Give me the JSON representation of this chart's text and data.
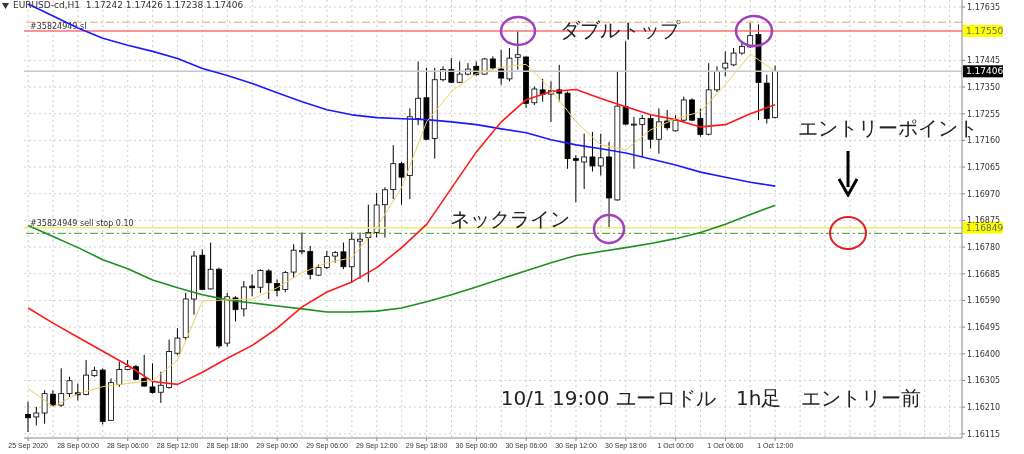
{
  "chart_data": {
    "type": "candlestick",
    "title": "EURUSD-cd,H1  1.17242 1.17426 1.17238 1.17406",
    "categories": [
      "25 Sep 2020",
      null,
      null,
      null,
      null,
      null,
      "28 Sep 00:00",
      null,
      null,
      null,
      null,
      null,
      "28 Sep 06:00",
      null,
      null,
      null,
      null,
      null,
      "28 Sep 12:00",
      null,
      null,
      null,
      null,
      null,
      "28 Sep 18:00",
      null,
      null,
      null,
      null,
      null,
      "29 Sep 00:00",
      null,
      null,
      null,
      null,
      null,
      "29 Sep 06:00",
      null,
      null,
      null,
      null,
      null,
      "29 Sep 12:00",
      null,
      null,
      null,
      null,
      null,
      "29 Sep 18:00",
      null,
      null,
      null,
      null,
      null,
      "30 Sep 00:00",
      null,
      null,
      null,
      null,
      null,
      "30 Sep 06:00",
      null,
      null,
      null,
      null,
      null,
      "30 Sep 12:00",
      null,
      null,
      null,
      null,
      null,
      "30 Sep 18:00",
      null,
      null,
      null,
      null,
      null,
      "1 Oct 00:00",
      null,
      null,
      null,
      null,
      null,
      "1 Oct 06:00",
      null,
      null,
      null,
      null,
      null,
      "1 Oct 12:00",
      null,
      null,
      null,
      null,
      null,
      null,
      null,
      null,
      null,
      null,
      null,
      null,
      null,
      null,
      null,
      null,
      null,
      null,
      null,
      null,
      null,
      null
    ],
    "ohlc": [
      [
        1.16184,
        1.16229,
        1.16121,
        1.16172
      ],
      [
        1.16175,
        1.16211,
        1.16145,
        1.16189
      ],
      [
        1.16189,
        1.1627,
        1.16151,
        1.16258
      ],
      [
        1.16256,
        1.1627,
        1.16211,
        1.16217
      ],
      [
        1.16217,
        1.16348,
        1.16211,
        1.16258
      ],
      [
        1.16258,
        1.16318,
        1.16246,
        1.16304
      ],
      [
        1.16261,
        1.16294,
        1.16234,
        1.16254
      ],
      [
        1.16255,
        1.16378,
        1.16252,
        1.16324
      ],
      [
        1.16322,
        1.16354,
        1.16318,
        1.1634
      ],
      [
        1.16342,
        1.16348,
        1.16148,
        1.16159
      ],
      [
        1.16163,
        1.16312,
        1.16163,
        1.16297
      ],
      [
        1.16291,
        1.16372,
        1.16282,
        1.16344
      ],
      [
        1.16344,
        1.16378,
        1.16342,
        1.16354
      ],
      [
        1.16354,
        1.1636,
        1.16306,
        1.16309
      ],
      [
        1.16312,
        1.16396,
        1.16282,
        1.16285
      ],
      [
        1.16282,
        1.16366,
        1.16258,
        1.16262
      ],
      [
        1.16263,
        1.16336,
        1.16225,
        1.16288
      ],
      [
        1.1628,
        1.1645,
        1.16276,
        1.16408
      ],
      [
        1.16402,
        1.16491,
        1.16396,
        1.16456
      ],
      [
        1.16458,
        1.16617,
        1.1645,
        1.16595
      ],
      [
        1.16595,
        1.16766,
        1.16539,
        1.16748
      ],
      [
        1.16751,
        1.16772,
        1.16629,
        1.16629
      ],
      [
        1.16631,
        1.16796,
        1.16629,
        1.16701
      ],
      [
        1.16701,
        1.16707,
        1.1642,
        1.16428
      ],
      [
        1.16438,
        1.16617,
        1.16426,
        1.16603
      ],
      [
        1.16599,
        1.16605,
        1.16515,
        1.16557
      ],
      [
        1.1656,
        1.16659,
        1.16533,
        1.16638
      ],
      [
        1.16641,
        1.16683,
        1.16605,
        1.16635
      ],
      [
        1.16637,
        1.16701,
        1.16617,
        1.16697
      ],
      [
        1.16695,
        1.16701,
        1.16595,
        1.16653
      ],
      [
        1.1665,
        1.16665,
        1.16605,
        1.16626
      ],
      [
        1.16629,
        1.16695,
        1.16619,
        1.16689
      ],
      [
        1.16691,
        1.1679,
        1.16671,
        1.16769
      ],
      [
        1.16765,
        1.16832,
        1.16754,
        1.16767
      ],
      [
        1.16764,
        1.16784,
        1.16665,
        1.16683
      ],
      [
        1.1668,
        1.16718,
        1.16677,
        1.16707
      ],
      [
        1.16707,
        1.16766,
        1.16701,
        1.16746
      ],
      [
        1.16748,
        1.16766,
        1.16724,
        1.1676
      ],
      [
        1.16763,
        1.16796,
        1.16701,
        1.1671
      ],
      [
        1.1671,
        1.16832,
        1.16653,
        1.16808
      ],
      [
        1.16801,
        1.16832,
        1.16667,
        1.16808
      ],
      [
        1.16814,
        1.16931,
        1.16655,
        1.16832
      ],
      [
        1.16832,
        1.16973,
        1.16814,
        1.1693
      ],
      [
        1.16931,
        1.16993,
        1.16814,
        1.16984
      ],
      [
        1.16985,
        1.17143,
        1.16951,
        1.17077
      ],
      [
        1.17077,
        1.17083,
        1.16931,
        1.17029
      ],
      [
        1.17035,
        1.17274,
        1.16951,
        1.17244
      ],
      [
        1.17238,
        1.17441,
        1.17214,
        1.1731
      ],
      [
        1.17312,
        1.17418,
        1.17161,
        1.17164
      ],
      [
        1.17167,
        1.17418,
        1.17095,
        1.17376
      ],
      [
        1.17376,
        1.17424,
        1.1737,
        1.17412
      ],
      [
        1.17412,
        1.17453,
        1.17364,
        1.17367
      ],
      [
        1.17367,
        1.17441,
        1.17364,
        1.17396
      ],
      [
        1.17396,
        1.17435,
        1.17391,
        1.17414
      ],
      [
        1.17424,
        1.17441,
        1.17391,
        1.17394
      ],
      [
        1.17396,
        1.17453,
        1.17394,
        1.1745
      ],
      [
        1.1745,
        1.17459,
        1.17412,
        1.17418
      ],
      [
        1.17414,
        1.17483,
        1.17358,
        1.17382
      ],
      [
        1.17379,
        1.17489,
        1.1737,
        1.17453
      ],
      [
        1.17456,
        1.17549,
        1.17412,
        1.17465
      ],
      [
        1.17457,
        1.17459,
        1.17276,
        1.17292
      ],
      [
        1.17294,
        1.17352,
        1.17286,
        1.17343
      ],
      [
        1.1734,
        1.17379,
        1.17298,
        1.17324
      ],
      [
        1.17325,
        1.1737,
        1.17226,
        1.17337
      ],
      [
        1.1734,
        1.17429,
        1.17298,
        1.17328
      ],
      [
        1.17328,
        1.17334,
        1.17059,
        1.17095
      ],
      [
        1.17095,
        1.17107,
        1.16939,
        1.17089
      ],
      [
        1.17083,
        1.17184,
        1.16987,
        1.17101
      ],
      [
        1.17101,
        1.1719,
        1.17049,
        1.17069
      ],
      [
        1.17069,
        1.17184,
        1.17035,
        1.17098
      ],
      [
        1.17101,
        1.17155,
        1.16846,
        1.16955
      ],
      [
        1.16948,
        1.17406,
        1.16945,
        1.17282
      ],
      [
        1.1728,
        1.17513,
        1.17214,
        1.17218
      ],
      [
        1.17216,
        1.17244,
        1.17059,
        1.17218
      ],
      [
        1.17217,
        1.1725,
        1.17101,
        1.17238
      ],
      [
        1.17238,
        1.1725,
        1.17131,
        1.17164
      ],
      [
        1.17164,
        1.17274,
        1.17113,
        1.17226
      ],
      [
        1.17229,
        1.17268,
        1.17196,
        1.17205
      ],
      [
        1.17194,
        1.1725,
        1.17191,
        1.17232
      ],
      [
        1.17232,
        1.17316,
        1.17226,
        1.17304
      ],
      [
        1.17304,
        1.1731,
        1.17229,
        1.17232
      ],
      [
        1.17238,
        1.17274,
        1.17173,
        1.17181
      ],
      [
        1.17182,
        1.17435,
        1.17178,
        1.1734
      ],
      [
        1.1734,
        1.17424,
        1.17332,
        1.17406
      ],
      [
        1.17418,
        1.17477,
        1.17388,
        1.17435
      ],
      [
        1.17429,
        1.17489,
        1.17424,
        1.17471
      ],
      [
        1.17471,
        1.17513,
        1.17465,
        1.17495
      ],
      [
        1.17493,
        1.17579,
        1.17489,
        1.17533
      ],
      [
        1.17537,
        1.17573,
        1.17232,
        1.17366
      ],
      [
        1.17364,
        1.17394,
        1.1722,
        1.17238
      ],
      [
        1.17242,
        1.17426,
        1.17238,
        1.17406
      ],
      null,
      null,
      null,
      null,
      null,
      null,
      null,
      null,
      null,
      null,
      null,
      null,
      null,
      null,
      null,
      null,
      null,
      null,
      null,
      null,
      null,
      null
    ],
    "series": [
      {
        "type": "line",
        "color": "#1a1aff",
        "values": [
          1.17646,
          null,
          null,
          1.17603,
          null,
          null,
          1.1756,
          null,
          null,
          1.17524,
          null,
          null,
          1.17499,
          null,
          null,
          1.17477,
          null,
          null,
          1.17452,
          null,
          null,
          1.17416,
          null,
          null,
          1.17391,
          null,
          null,
          1.17363,
          null,
          null,
          1.1733,
          null,
          null,
          1.17298,
          null,
          null,
          1.17269,
          null,
          null,
          1.17251,
          null,
          null,
          1.17241,
          null,
          null,
          1.17237,
          null,
          null,
          1.17234,
          null,
          null,
          1.17226,
          null,
          null,
          1.17216,
          null,
          null,
          1.17201,
          null,
          null,
          1.17187,
          null,
          null,
          1.17162,
          null,
          null,
          1.17144,
          null,
          null,
          1.1713,
          null,
          null,
          1.17115,
          null,
          null,
          1.17094,
          null,
          null,
          1.17072,
          null,
          null,
          1.17047,
          null,
          null,
          1.17029,
          null,
          null,
          1.17011,
          null,
          null,
          1.16997,
          null,
          null,
          null,
          null,
          null,
          null,
          null,
          null,
          null,
          null,
          null,
          null,
          null,
          null,
          null,
          null,
          null,
          null,
          null,
          null,
          null,
          null
        ]
      },
      {
        "type": "line",
        "color": "#1f8f1f",
        "values": [
          1.16857,
          null,
          null,
          1.16818,
          null,
          null,
          1.16778,
          null,
          null,
          1.16735,
          null,
          null,
          1.16703,
          null,
          null,
          1.16663,
          null,
          null,
          1.16635,
          null,
          null,
          1.1661,
          null,
          null,
          1.16592,
          null,
          null,
          1.16581,
          null,
          null,
          1.1657,
          null,
          null,
          1.1656,
          null,
          null,
          1.16549,
          null,
          null,
          1.16549,
          null,
          null,
          1.16552,
          null,
          null,
          1.16563,
          null,
          null,
          1.16585,
          null,
          null,
          1.1661,
          null,
          null,
          1.16638,
          null,
          null,
          1.16667,
          null,
          null,
          1.16696,
          null,
          null,
          1.16724,
          null,
          null,
          1.1675,
          null,
          null,
          1.16764,
          null,
          null,
          1.16778,
          null,
          null,
          1.16793,
          null,
          null,
          1.1681,
          null,
          null,
          1.16832,
          null,
          null,
          1.16861,
          null,
          null,
          1.16896,
          null,
          null,
          1.16929,
          null,
          null,
          null,
          null,
          null,
          null,
          null,
          null,
          null,
          null,
          null,
          null,
          null,
          null,
          null,
          null,
          null,
          null,
          null,
          null,
          null,
          null
        ]
      },
      {
        "type": "line",
        "color": "#ff1a1a",
        "values": [
          1.16563,
          null,
          null,
          1.16509,
          null,
          null,
          1.16459,
          null,
          null,
          1.16409,
          null,
          null,
          1.16359,
          null,
          null,
          1.16301,
          null,
          null,
          1.16291,
          null,
          null,
          1.16334,
          null,
          null,
          1.16384,
          null,
          null,
          1.1643,
          null,
          null,
          1.16491,
          null,
          null,
          1.16567,
          null,
          null,
          1.1662,
          null,
          null,
          1.16656,
          null,
          null,
          1.16707,
          null,
          null,
          1.16778,
          null,
          null,
          1.16861,
          null,
          null,
          1.1699,
          null,
          null,
          1.17119,
          null,
          null,
          1.17226,
          null,
          null,
          1.17305,
          null,
          null,
          1.17334,
          null,
          null,
          1.17341,
          null,
          null,
          1.17309,
          null,
          null,
          1.1728,
          null,
          null,
          1.17251,
          null,
          null,
          1.17234,
          null,
          null,
          1.17208,
          null,
          null,
          1.17216,
          null,
          null,
          1.17255,
          null,
          null,
          1.17287,
          null,
          null,
          null,
          null,
          null,
          null,
          null,
          null,
          null,
          null,
          null,
          null,
          null,
          null,
          null,
          null,
          null,
          null,
          null,
          null,
          null,
          null
        ]
      },
      {
        "type": "line",
        "color": "#f2cf5b",
        "values": [
          1.16276,
          null,
          null,
          1.16212,
          null,
          null,
          1.16258,
          null,
          null,
          1.16283,
          null,
          null,
          1.16294,
          null,
          null,
          1.16305,
          null,
          null,
          1.16377,
          null,
          null,
          1.16588,
          null,
          null,
          1.16592,
          null,
          null,
          1.16595,
          null,
          null,
          1.16635,
          null,
          null,
          1.16689,
          null,
          null,
          1.16724,
          null,
          null,
          1.16742,
          null,
          null,
          1.1685,
          null,
          null,
          1.16993,
          null,
          null,
          1.17226,
          null,
          null,
          1.17334,
          null,
          null,
          1.17398,
          null,
          null,
          1.1742,
          null,
          null,
          1.17431,
          null,
          null,
          1.17341,
          null,
          null,
          1.17226,
          null,
          null,
          1.17144,
          null,
          null,
          1.17126,
          null,
          null,
          1.17198,
          null,
          null,
          1.17237,
          null,
          null,
          1.17262,
          null,
          null,
          1.17359,
          null,
          null,
          1.17467,
          null,
          null,
          1.17406,
          null,
          null,
          null,
          null,
          null,
          null,
          null,
          null,
          null,
          null,
          null,
          null,
          null,
          null,
          null,
          null,
          null,
          null,
          null,
          null,
          null,
          null
        ]
      }
    ],
    "ylim": [
      1.161,
      1.1766
    ],
    "yticks": [
      {
        "value": 1.17635,
        "label": "1.17635"
      },
      {
        "value": 1.17445,
        "label": "1.17445"
      },
      {
        "value": 1.1735,
        "label": "1.17350"
      },
      {
        "value": 1.17255,
        "label": "1.17255"
      },
      {
        "value": 1.1716,
        "label": "1.17160"
      },
      {
        "value": 1.17065,
        "label": "1.17065"
      },
      {
        "value": 1.1697,
        "label": "1.16970"
      },
      {
        "value": 1.16875,
        "label": "1.16875"
      },
      {
        "value": 1.1678,
        "label": "1.16780"
      },
      {
        "value": 1.16685,
        "label": "1.16685"
      },
      {
        "value": 1.1659,
        "label": "1.16590"
      },
      {
        "value": 1.16495,
        "label": "1.16495"
      },
      {
        "value": 1.164,
        "label": "1.16400"
      },
      {
        "value": 1.16305,
        "label": "1.16305"
      },
      {
        "value": 1.1621,
        "label": "1.16210"
      },
      {
        "value": 1.16115,
        "label": "1.16115"
      }
    ],
    "ref_lines": [
      {
        "axis": "y",
        "value": 1.17581,
        "color": "#f4a070",
        "line_style": "dashed"
      },
      {
        "axis": "y",
        "value": 1.1755,
        "label": "#35824949 sl",
        "color": "#ff7070"
      },
      {
        "axis": "y",
        "value": 1.17406,
        "color": "#c8c8c8"
      },
      {
        "axis": "y",
        "value": 1.16849,
        "label": "#35824949 sell stop 0.10",
        "color": "#f0ee70"
      },
      {
        "axis": "y",
        "value": 1.16829,
        "color": "#3a9a3a",
        "line_style": "dashed"
      }
    ],
    "annotations": [
      "ダブルトップ",
      "ネックライン",
      "エントリーポイント",
      "10/1 19:00 ユーロドル　1h足　エントリー前",
      {
        "text": "1.17550",
        "y": 1.1755
      },
      {
        "text": "1.17406",
        "y": 1.17406
      },
      {
        "text": "1.16849",
        "y": 1.16849
      }
    ],
    "grid": true
  }
}
